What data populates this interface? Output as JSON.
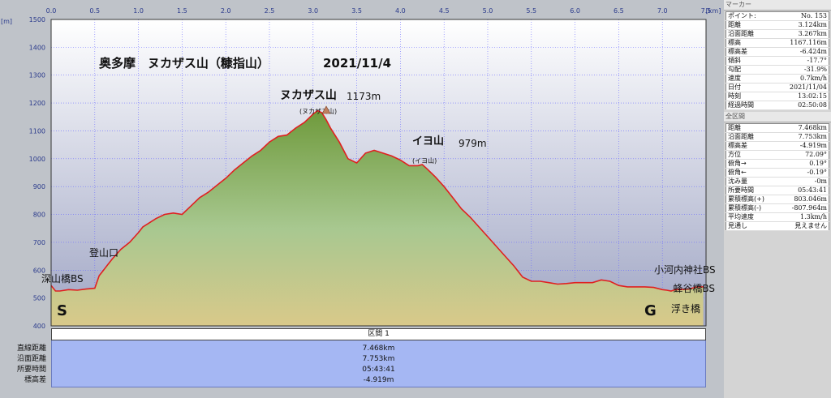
{
  "chart_data": {
    "type": "area",
    "title": "奥多摩　ヌカザス山（糠指山）",
    "date_label": "2021/11/4",
    "x_unit": "[km]",
    "y_unit": "[m]",
    "xlim": [
      0.0,
      7.5
    ],
    "ylim": [
      400,
      1500
    ],
    "x_ticks": [
      "0.0",
      "0.5",
      "1.0",
      "1.5",
      "2.0",
      "2.5",
      "3.0",
      "3.5",
      "4.0",
      "4.5",
      "5.0",
      "5.5",
      "6.0",
      "6.5",
      "7.0",
      "7.5"
    ],
    "y_ticks": [
      "1500",
      "1400",
      "1300",
      "1200",
      "1100",
      "1000",
      "900",
      "800",
      "700",
      "600",
      "500",
      "400"
    ],
    "grid": true,
    "series": [
      {
        "x": [
          0.0,
          0.05,
          0.1,
          0.2,
          0.3,
          0.4,
          0.5,
          0.55,
          0.6,
          0.65,
          0.7,
          0.8,
          0.9,
          1.0,
          1.05,
          1.1,
          1.2,
          1.3,
          1.4,
          1.5,
          1.6,
          1.7,
          1.8,
          1.9,
          2.0,
          2.1,
          2.2,
          2.3,
          2.4,
          2.5,
          2.6,
          2.7,
          2.8,
          2.9,
          3.0,
          3.05,
          3.1,
          3.15,
          3.2,
          3.3,
          3.4,
          3.5,
          3.6,
          3.7,
          3.8,
          3.9,
          4.0,
          4.1,
          4.2,
          4.25,
          4.3,
          4.4,
          4.5,
          4.6,
          4.7,
          4.8,
          4.9,
          5.0,
          5.1,
          5.2,
          5.3,
          5.4,
          5.5,
          5.6,
          5.7,
          5.8,
          5.9,
          6.0,
          6.1,
          6.2,
          6.3,
          6.4,
          6.5,
          6.6,
          6.7,
          6.8,
          6.9,
          7.0,
          7.05,
          7.1,
          7.15,
          7.2,
          7.3,
          7.4,
          7.468
        ],
        "y": [
          545,
          525,
          525,
          530,
          528,
          532,
          535,
          580,
          600,
          620,
          640,
          675,
          700,
          735,
          755,
          765,
          785,
          800,
          805,
          800,
          830,
          860,
          880,
          905,
          930,
          960,
          985,
          1010,
          1030,
          1060,
          1080,
          1085,
          1110,
          1130,
          1160,
          1173,
          1165,
          1140,
          1110,
          1060,
          1000,
          985,
          1020,
          1030,
          1020,
          1010,
          995,
          975,
          975,
          979,
          965,
          935,
          900,
          860,
          820,
          790,
          755,
          720,
          685,
          650,
          615,
          575,
          560,
          560,
          555,
          550,
          552,
          555,
          555,
          555,
          565,
          560,
          545,
          540,
          540,
          540,
          538,
          530,
          528,
          525,
          530,
          530,
          532,
          540,
          540
        ]
      }
    ],
    "annotations": [
      {
        "text": "ヌカザス山",
        "x": 3.05,
        "y": 1220
      },
      {
        "text": "1173m",
        "x": 3.05,
        "y": 1220
      },
      {
        "text": "(ヌカザス山)",
        "x": 3.05,
        "y": 1180
      },
      {
        "text": "イヨ山",
        "x": 4.25,
        "y": 1090
      },
      {
        "text": "979m",
        "x": 4.25,
        "y": 1090
      },
      {
        "text": "(イヨ山)",
        "x": 4.25,
        "y": 1000
      },
      {
        "text": "登山口",
        "x": 0.55,
        "y": 660
      },
      {
        "text": "深山橋BS",
        "x": 0.05,
        "y": 560
      },
      {
        "text": "小河内神社BS",
        "x": 7.1,
        "y": 570
      },
      {
        "text": "蜂谷橋BS",
        "x": 7.5,
        "y": 530
      },
      {
        "text": "浮き橋",
        "x": 7.2,
        "y": 455
      },
      {
        "text": "S",
        "x": 0.1,
        "y": 455
      },
      {
        "text": "G",
        "x": 6.95,
        "y": 455
      }
    ]
  },
  "summary": {
    "header": "区間 1",
    "labels": [
      "直線距離",
      "沿面距離",
      "所要時間",
      "標高差"
    ],
    "values": [
      "7.468km",
      "7.753km",
      "05:43:41",
      "-4.919m"
    ]
  },
  "marker_panel": {
    "title": "マーカー",
    "rows": [
      [
        "ポイント:",
        "No. 153"
      ],
      [
        "距離",
        "3.124km"
      ],
      [
        "沿面距離",
        "3.267km"
      ],
      [
        "標高",
        "1167.116m"
      ],
      [
        "標高差",
        "-6.424m"
      ],
      [
        "傾斜",
        "-17.7°"
      ],
      [
        "勾配",
        "-31.9%"
      ],
      [
        "速度",
        "0.7km/h"
      ],
      [
        "日付",
        "2021/11/04"
      ],
      [
        "時刻",
        "13:02:15"
      ],
      [
        "経過時間",
        "02:50:08"
      ]
    ]
  },
  "total_panel": {
    "title": "全区間",
    "rows": [
      [
        "距離",
        "7.468km"
      ],
      [
        "沿面距離",
        "7.753km"
      ],
      [
        "標高差",
        "-4.919m"
      ],
      [
        "方位",
        "72.09°"
      ],
      [
        "俯角→",
        "0.19°"
      ],
      [
        "俯角←",
        "-0.19°"
      ],
      [
        "沈み量",
        "-0m"
      ],
      [
        "所要時間",
        "05:43:41"
      ],
      [
        "累積標高(+)",
        "803.046m"
      ],
      [
        "累積標高(-)",
        "-807.964m"
      ],
      [
        "平均速度",
        "1.3km/h"
      ],
      [
        "見通し",
        "見えません"
      ]
    ]
  },
  "colors": {
    "line": "#e02020",
    "grid": "#6a6aff",
    "plot_bg_top": "#ffffff",
    "plot_bg_bottom": "#9fa5c4",
    "fill_top": "#7fa04a",
    "fill_bottom": "#d9c98a",
    "start_color": "#2a3ad0",
    "goal_color": "#e02020"
  }
}
